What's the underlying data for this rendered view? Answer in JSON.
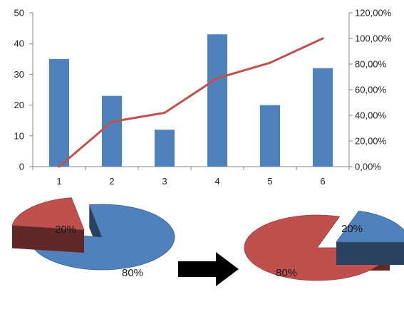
{
  "chart_data": [
    {
      "type": "bar",
      "categories": [
        "1",
        "2",
        "3",
        "4",
        "5",
        "6"
      ],
      "series": [
        {
          "type": "bar",
          "axis": "left",
          "values": [
            35,
            23,
            12,
            43,
            20,
            32
          ]
        },
        {
          "type": "line",
          "axis": "right",
          "values": [
            0,
            35,
            42,
            69,
            81,
            100
          ]
        }
      ],
      "left_ticks": [
        "0",
        "10",
        "20",
        "30",
        "40",
        "50"
      ],
      "right_ticks": [
        "0,00%",
        "20,00%",
        "40,00%",
        "60,00%",
        "80,00%",
        "100,00%",
        "120,00%"
      ],
      "ylim": [
        0,
        50
      ],
      "y2lim": [
        0,
        120
      ],
      "grid": false,
      "colors": {
        "bar": "#4f81bd",
        "line": "#c0504d"
      }
    },
    {
      "type": "pie",
      "labels": [
        "20%",
        "80%"
      ],
      "values": [
        20,
        80
      ],
      "colors": {
        "small": "#c0504d",
        "large": "#4f81bd"
      }
    },
    {
      "type": "pie",
      "labels": [
        "20%",
        "80%"
      ],
      "values": [
        20,
        80
      ],
      "colors": {
        "small": "#4f81bd",
        "large": "#c0504d"
      }
    }
  ],
  "arrow": {
    "icon": "right-arrow-icon",
    "color": "#000000"
  }
}
